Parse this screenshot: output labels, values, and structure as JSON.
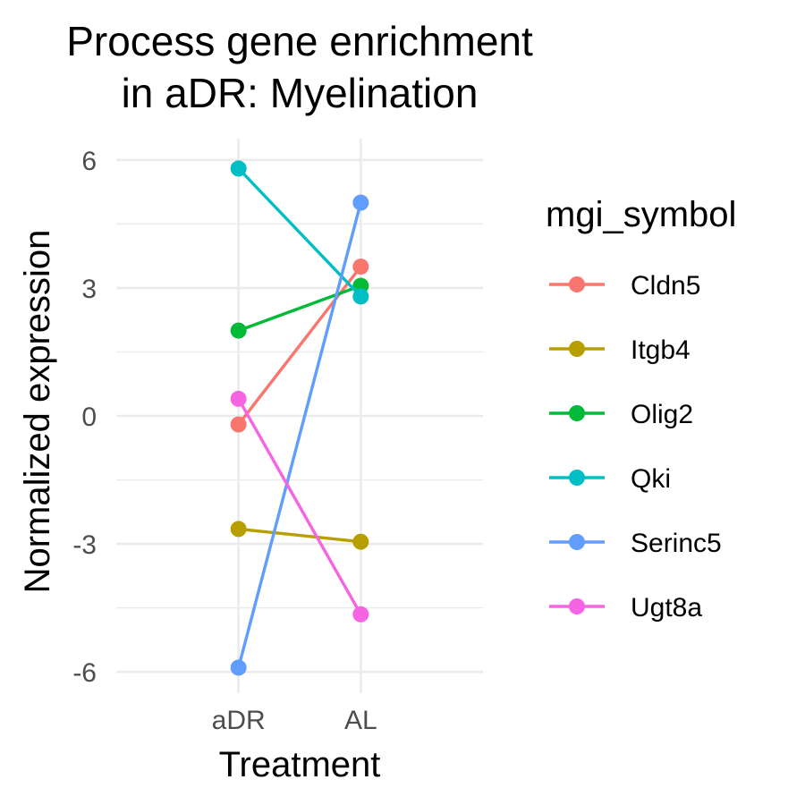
{
  "chart_data": {
    "type": "line",
    "title": [
      "Process gene enrichment",
      "in aDR: Myelination"
    ],
    "xlabel": "Treatment",
    "ylabel": "Normalized expression",
    "categories": [
      "aDR",
      "AL"
    ],
    "ylim": [
      -6.5,
      6.5
    ],
    "y_ticks": [
      -6,
      -3,
      0,
      3,
      6
    ],
    "y_tick_labels": [
      "-6",
      "-3",
      "0",
      "3",
      "6"
    ],
    "grid": true,
    "legend": {
      "title": "mgi_symbol",
      "position": "right"
    },
    "series": [
      {
        "name": "Cldn5",
        "color": "#F8766D",
        "values": [
          -0.2,
          3.5
        ]
      },
      {
        "name": "Itgb4",
        "color": "#B79F00",
        "values": [
          -2.65,
          -2.95
        ]
      },
      {
        "name": "Olig2",
        "color": "#00BA38",
        "values": [
          2.0,
          3.05
        ]
      },
      {
        "name": "Qki",
        "color": "#00BFC4",
        "values": [
          5.8,
          2.8
        ]
      },
      {
        "name": "Serinc5",
        "color": "#619CFF",
        "values": [
          -5.9,
          5.0
        ]
      },
      {
        "name": "Ugt8a",
        "color": "#F564E3",
        "values": [
          0.4,
          -4.65
        ]
      }
    ]
  }
}
